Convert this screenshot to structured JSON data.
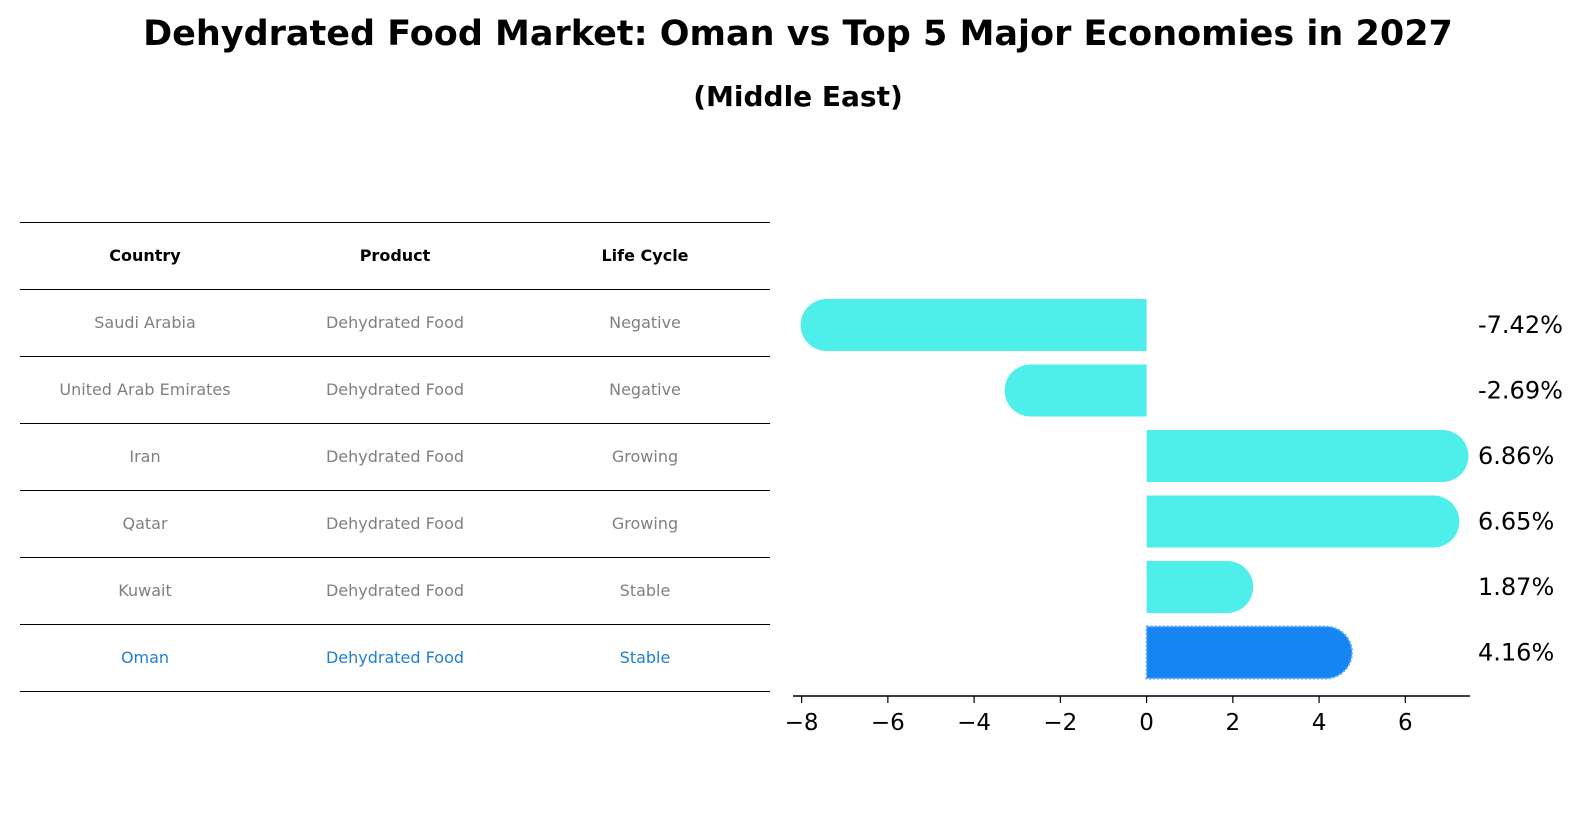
{
  "header": {
    "title": "Dehydrated Food Market: Oman vs Top 5 Major Economies in 2027",
    "subtitle": "(Middle East)"
  },
  "table": {
    "columns": [
      "Country",
      "Product",
      "Life Cycle"
    ],
    "rows": [
      [
        "Saudi Arabia",
        "Dehydrated Food",
        "Negative"
      ],
      [
        "United Arab Emirates",
        "Dehydrated Food",
        "Negative"
      ],
      [
        "Iran",
        "Dehydrated Food",
        "Growing"
      ],
      [
        "Qatar",
        "Dehydrated Food",
        "Growing"
      ],
      [
        "Kuwait",
        "Dehydrated Food",
        "Stable"
      ],
      [
        "Oman",
        "Dehydrated Food",
        "Stable"
      ]
    ],
    "highlight_row": 5,
    "highlight_color": "#1f7fcf"
  },
  "chart_data": {
    "type": "bar",
    "orientation": "horizontal",
    "categories": [
      "Saudi Arabia",
      "United Arab Emirates",
      "Iran",
      "Qatar",
      "Kuwait",
      "Oman"
    ],
    "values": [
      -7.42,
      -2.69,
      6.86,
      6.65,
      1.87,
      4.16
    ],
    "value_labels": [
      "-7.42%",
      "-2.69%",
      "6.86%",
      "6.65%",
      "1.87%",
      "4.16%"
    ],
    "xlim": [
      -8.2,
      7.5
    ],
    "xticks": [
      -8,
      -6,
      -4,
      -2,
      0,
      2,
      4,
      6
    ],
    "xtick_labels": [
      "−8",
      "−6",
      "−4",
      "−2",
      "0",
      "2",
      "4",
      "6"
    ],
    "bar_color": "#4eeeea",
    "highlight_color": "#1685f2",
    "highlight_index": 5,
    "grid": false
  }
}
